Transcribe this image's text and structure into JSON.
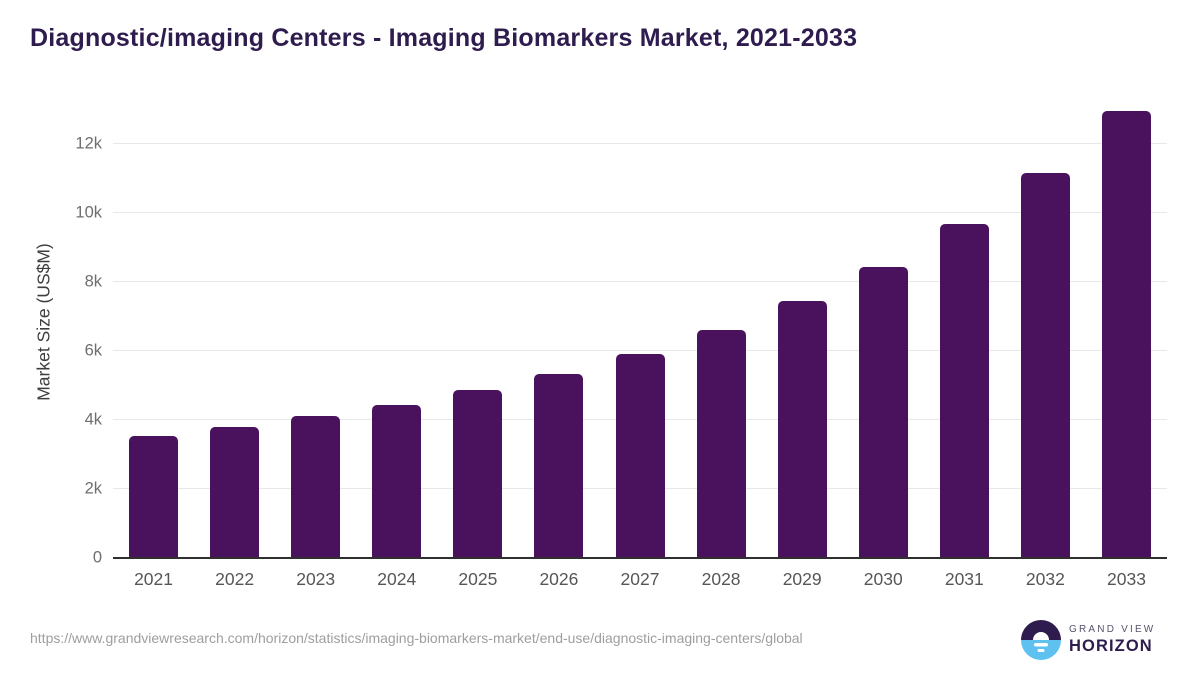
{
  "title": "Diagnostic/imaging Centers - Imaging Biomarkers Market, 2021-2033",
  "chart_data": {
    "type": "bar",
    "title": "Diagnostic/imaging Centers - Imaging Biomarkers Market, 2021-2033",
    "categories": [
      "2021",
      "2022",
      "2023",
      "2024",
      "2025",
      "2026",
      "2027",
      "2028",
      "2029",
      "2030",
      "2031",
      "2032",
      "2033"
    ],
    "values": [
      3550,
      3800,
      4110,
      4450,
      4870,
      5340,
      5900,
      6610,
      7450,
      8450,
      9670,
      11160,
      12950
    ],
    "xlabel": "",
    "ylabel": "Market Size (US$M)",
    "ylim": [
      0,
      13400
    ],
    "ytick_values": [
      0,
      2000,
      4000,
      6000,
      8000,
      10000,
      12000
    ],
    "ytick_labels": [
      "0",
      "2k",
      "4k",
      "6k",
      "8k",
      "10k",
      "12k"
    ],
    "grid": true,
    "legend": "none",
    "bar_color": "#4a115c"
  },
  "colors": {
    "title_text": "#2e1c4e",
    "bar": "#4a115c",
    "gridline": "#e8e8e8",
    "axis_line": "#2f2f2f",
    "tick_text": "#6e6e6e",
    "category_text": "#565656",
    "url_text": "#9e9e9e",
    "logo_purple": "#2e1c4e",
    "logo_blue": "#5ec1ef"
  },
  "footer": {
    "source_url": "https://www.grandviewresearch.com/horizon/statistics/imaging-biomarkers-market/end-use/diagnostic-imaging-centers/global",
    "logo": {
      "line1": "GRAND VIEW",
      "line2": "HORIZON"
    }
  }
}
